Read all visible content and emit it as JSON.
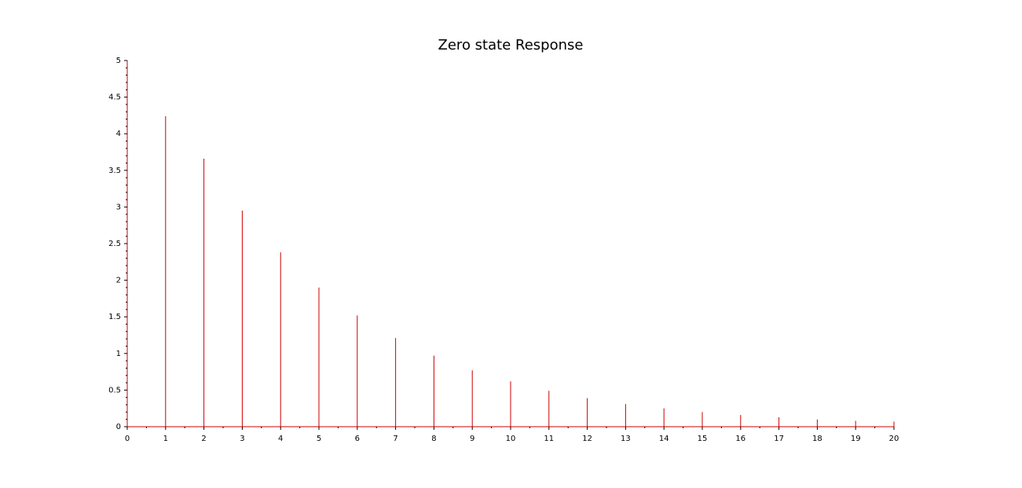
{
  "chart_data": {
    "type": "stem",
    "title": "Zero state Response",
    "xlabel": "",
    "ylabel": "",
    "xlim": [
      0,
      20
    ],
    "ylim": [
      0,
      5
    ],
    "x_ticks": [
      "0",
      "1",
      "2",
      "3",
      "4",
      "5",
      "6",
      "7",
      "8",
      "9",
      "10",
      "11",
      "12",
      "13",
      "14",
      "15",
      "16",
      "17",
      "18",
      "19",
      "20"
    ],
    "y_ticks": [
      "0",
      "0.5",
      "1",
      "1.5",
      "2",
      "2.5",
      "3",
      "3.5",
      "4",
      "4.5",
      "5"
    ],
    "x_tick_values": [
      0,
      1,
      2,
      3,
      4,
      5,
      6,
      7,
      8,
      9,
      10,
      11,
      12,
      13,
      14,
      15,
      16,
      17,
      18,
      19,
      20
    ],
    "y_tick_values": [
      0,
      0.5,
      1,
      1.5,
      2,
      2.5,
      3,
      3.5,
      4,
      4.5,
      5
    ],
    "grid": false,
    "series": [
      {
        "x": [
          0,
          1,
          2,
          3,
          4,
          5,
          6,
          7,
          8,
          9,
          10,
          11,
          12,
          13,
          14,
          15,
          16,
          17,
          18,
          19,
          20
        ],
        "values": [
          0,
          4.24,
          3.66,
          2.95,
          2.38,
          1.9,
          1.52,
          1.21,
          0.97,
          0.77,
          0.62,
          0.49,
          0.39,
          0.31,
          0.25,
          0.2,
          0.16,
          0.13,
          0.1,
          0.08,
          0.07
        ],
        "color": "#cc0000"
      }
    ],
    "axis_color": "#cc0000"
  }
}
